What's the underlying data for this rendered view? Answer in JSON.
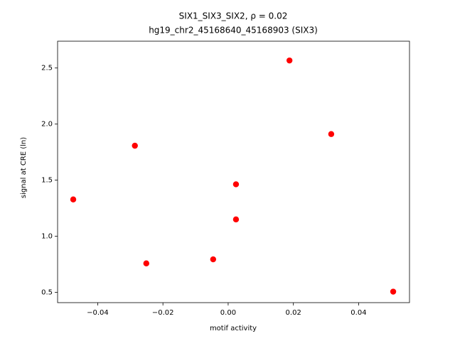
{
  "chart_data": {
    "type": "scatter",
    "title": [
      "SIX1_SIX3_SIX2, ρ = 0.02",
      "hg19_chr2_45168640_45168903 (SIX3)"
    ],
    "x_label": "motif activity",
    "y_label": "signal at CRE (ln)",
    "x": [
      -0.0475,
      -0.0286,
      -0.0251,
      -0.0046,
      0.0024,
      0.0024,
      0.0188,
      0.0316,
      0.0506
    ],
    "values": [
      1.328,
      1.807,
      0.758,
      0.794,
      1.463,
      1.15,
      2.567,
      1.911,
      0.506
    ],
    "color": "#ff0000",
    "xlim": [
      -0.0523,
      0.0556
    ],
    "ylim": [
      0.408,
      2.739
    ],
    "xticks": [
      {
        "value": -0.04,
        "label": "−0.04"
      },
      {
        "value": -0.02,
        "label": "−0.02"
      },
      {
        "value": 0,
        "label": "0.00"
      },
      {
        "value": 0.02,
        "label": "0.02"
      },
      {
        "value": 0.04,
        "label": "0.04"
      }
    ],
    "yticks": [
      0.5,
      {
        "value": 1,
        "label": "1.0"
      },
      1.5,
      {
        "value": 2,
        "label": "2.0"
      },
      2.5
    ]
  }
}
